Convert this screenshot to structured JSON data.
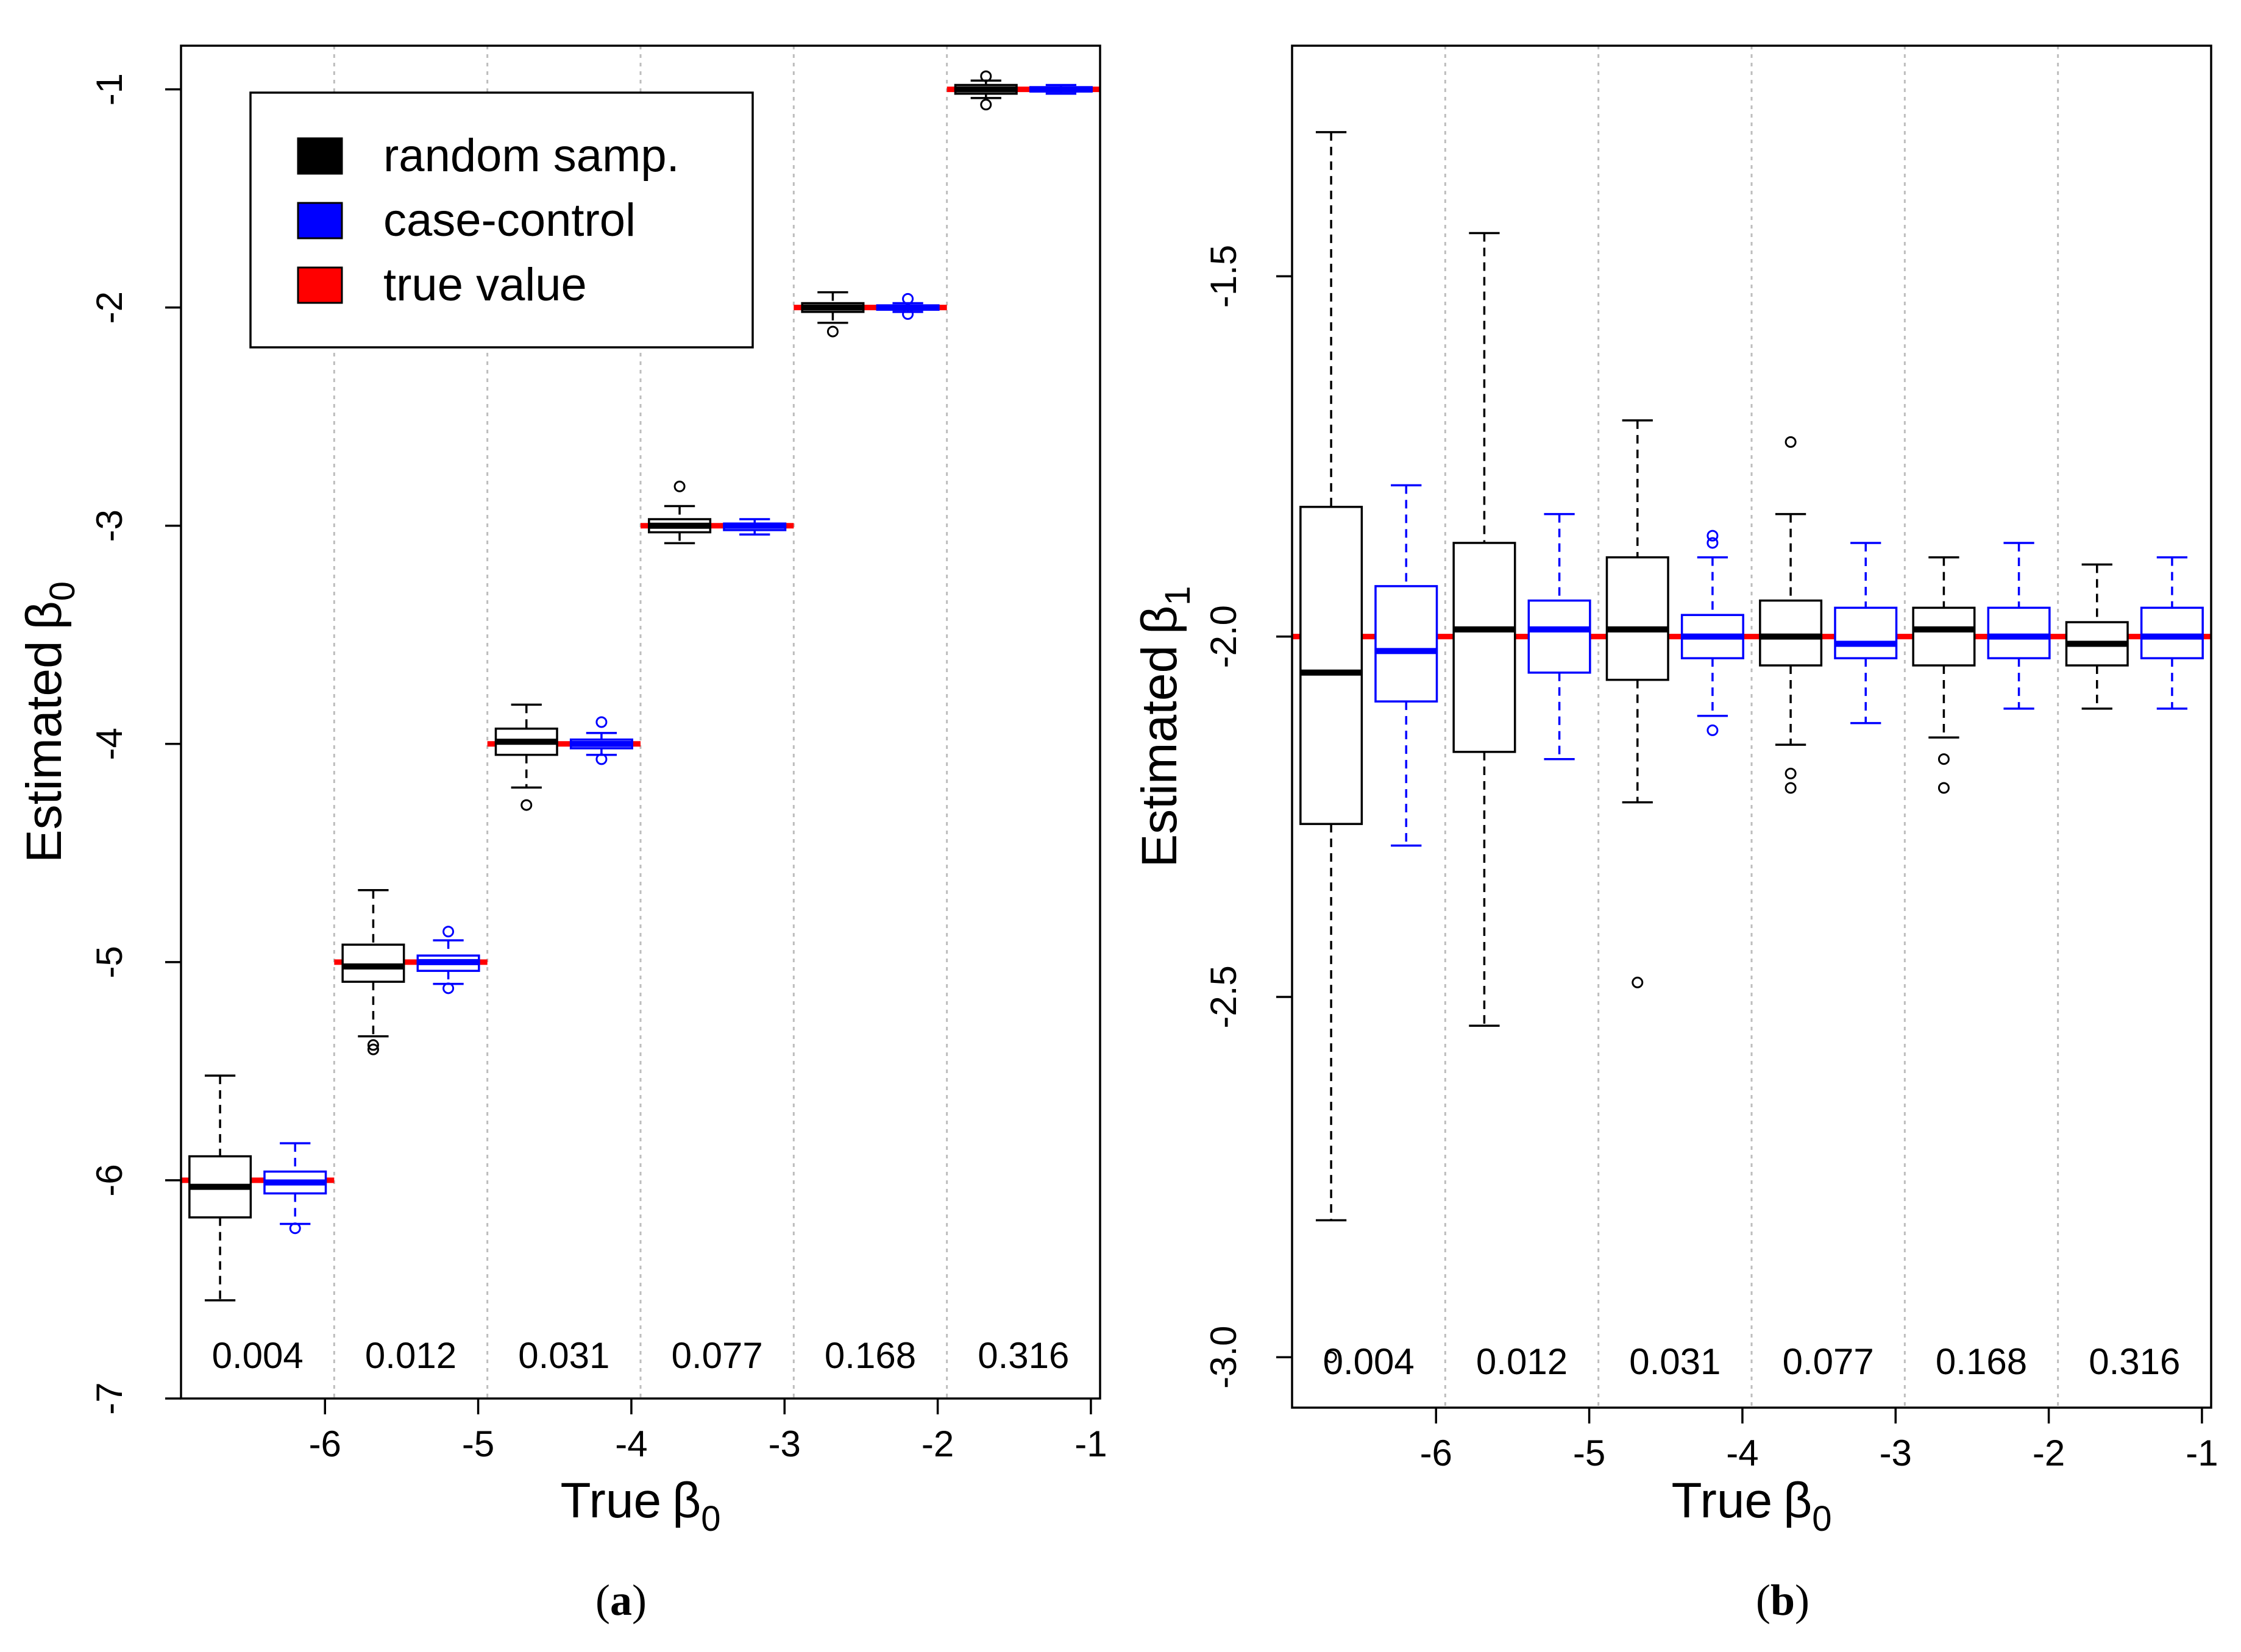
{
  "colors": {
    "random": "#000000",
    "casecontrol": "#0000ff",
    "truth": "#ff0000",
    "grid": "#bdbdbd"
  },
  "legend": {
    "placement": "top-left",
    "entries": [
      {
        "key": "random",
        "label": "random samp."
      },
      {
        "key": "casecontrol",
        "label": "case-control"
      },
      {
        "key": "truth",
        "label": "true value"
      }
    ]
  },
  "chart_data": [
    {
      "type": "box",
      "panel_label": "a",
      "xlabel": "True",
      "xlabel_symbol": "β",
      "xlabel_sub": "0",
      "ylabel": "Estimated",
      "ylabel_symbol": "β",
      "ylabel_sub": "0",
      "ylim": [
        -7,
        -0.8
      ],
      "yticks": [
        "-7",
        "-6",
        "-5",
        "-4",
        "-3",
        "-2",
        "-1"
      ],
      "ytick_values": [
        -7,
        -6,
        -5,
        -4,
        -3,
        -2,
        -1
      ],
      "categories": [
        "-6",
        "-5",
        "-4",
        "-3",
        "-2",
        "-1"
      ],
      "proportions": [
        "0.004",
        "0.012",
        "0.031",
        "0.077",
        "0.168",
        "0.316"
      ],
      "true_values": [
        -6,
        -5,
        -4,
        -3,
        -2,
        -1
      ],
      "grid": "vertical dotted separators",
      "series": [
        {
          "key": "random",
          "name": "random samp.",
          "boxes": [
            {
              "lw": -6.55,
              "q1": -6.17,
              "med": -6.03,
              "q3": -5.89,
              "uw": -5.52,
              "out": []
            },
            {
              "lw": -5.34,
              "q1": -5.09,
              "med": -5.02,
              "q3": -4.92,
              "uw": -4.67,
              "out": [
                -5.38,
                -5.4
              ]
            },
            {
              "lw": -4.2,
              "q1": -4.05,
              "med": -3.99,
              "q3": -3.93,
              "uw": -3.82,
              "out": [
                -4.28
              ]
            },
            {
              "lw": -3.08,
              "q1": -3.03,
              "med": -3.0,
              "q3": -2.97,
              "uw": -2.91,
              "out": [
                -2.82
              ]
            },
            {
              "lw": -2.07,
              "q1": -2.02,
              "med": -2.0,
              "q3": -1.98,
              "uw": -1.93,
              "out": [
                -2.11
              ]
            },
            {
              "lw": -1.04,
              "q1": -1.02,
              "med": -1.0,
              "q3": -0.98,
              "uw": -0.96,
              "out": [
                -0.94,
                -1.07
              ]
            }
          ]
        },
        {
          "key": "casecontrol",
          "name": "case-control",
          "boxes": [
            {
              "lw": -6.2,
              "q1": -6.06,
              "med": -6.01,
              "q3": -5.96,
              "uw": -5.83,
              "out": [
                -6.22
              ]
            },
            {
              "lw": -5.1,
              "q1": -5.04,
              "med": -5.0,
              "q3": -4.97,
              "uw": -4.9,
              "out": [
                -4.86,
                -5.12
              ]
            },
            {
              "lw": -4.05,
              "q1": -4.02,
              "med": -4.0,
              "q3": -3.98,
              "uw": -3.95,
              "out": [
                -3.9,
                -4.07
              ]
            },
            {
              "lw": -3.04,
              "q1": -3.02,
              "med": -3.0,
              "q3": -2.99,
              "uw": -2.97,
              "out": []
            },
            {
              "lw": -2.02,
              "q1": -2.01,
              "med": -2.0,
              "q3": -1.99,
              "uw": -1.98,
              "out": [
                -1.96,
                -2.03
              ]
            },
            {
              "lw": -1.02,
              "q1": -1.01,
              "med": -1.0,
              "q3": -0.99,
              "uw": -0.98,
              "out": []
            }
          ]
        }
      ]
    },
    {
      "type": "box",
      "panel_label": "b",
      "xlabel": "True",
      "xlabel_symbol": "β",
      "xlabel_sub": "0",
      "ylabel": "Estimated",
      "ylabel_symbol": "β",
      "ylabel_sub": "1",
      "ylim": [
        -3.07,
        -1.18
      ],
      "yticks": [
        "-3.0",
        "-2.5",
        "-2.0",
        "-1.5"
      ],
      "ytick_values": [
        -3.0,
        -2.5,
        -2.0,
        -1.5
      ],
      "categories": [
        "-6",
        "-5",
        "-4",
        "-3",
        "-2",
        "-1"
      ],
      "proportions": [
        "0.004",
        "0.012",
        "0.031",
        "0.077",
        "0.168",
        "0.316"
      ],
      "true_value": -2.0,
      "grid": "vertical dotted separators",
      "series": [
        {
          "key": "random",
          "name": "random samp.",
          "boxes": [
            {
              "lw": -2.81,
              "q1": -2.26,
              "med": -2.05,
              "q3": -1.82,
              "uw": -1.3,
              "out": [
                -3.0
              ]
            },
            {
              "lw": -2.54,
              "q1": -2.16,
              "med": -1.99,
              "q3": -1.87,
              "uw": -1.44,
              "out": []
            },
            {
              "lw": -2.23,
              "q1": -2.06,
              "med": -1.99,
              "q3": -1.89,
              "uw": -1.7,
              "out": [
                -2.48
              ]
            },
            {
              "lw": -2.15,
              "q1": -2.04,
              "med": -2.0,
              "q3": -1.95,
              "uw": -1.83,
              "out": [
                -1.73,
                -2.19,
                -2.21
              ]
            },
            {
              "lw": -2.14,
              "q1": -2.04,
              "med": -1.99,
              "q3": -1.96,
              "uw": -1.89,
              "out": [
                -2.17,
                -2.21
              ]
            },
            {
              "lw": -2.1,
              "q1": -2.04,
              "med": -2.01,
              "q3": -1.98,
              "uw": -1.9,
              "out": []
            }
          ]
        },
        {
          "key": "casecontrol",
          "name": "case-control",
          "boxes": [
            {
              "lw": -2.29,
              "q1": -2.09,
              "med": -2.02,
              "q3": -1.93,
              "uw": -1.79,
              "out": []
            },
            {
              "lw": -2.17,
              "q1": -2.05,
              "med": -1.99,
              "q3": -1.95,
              "uw": -1.83,
              "out": []
            },
            {
              "lw": -2.11,
              "q1": -2.03,
              "med": -2.0,
              "q3": -1.97,
              "uw": -1.89,
              "out": [
                -1.86,
                -1.87,
                -2.13
              ]
            },
            {
              "lw": -2.12,
              "q1": -2.03,
              "med": -2.01,
              "q3": -1.96,
              "uw": -1.87,
              "out": []
            },
            {
              "lw": -2.1,
              "q1": -2.03,
              "med": -2.0,
              "q3": -1.96,
              "uw": -1.87,
              "out": []
            },
            {
              "lw": -2.1,
              "q1": -2.03,
              "med": -2.0,
              "q3": -1.96,
              "uw": -1.89,
              "out": []
            }
          ]
        }
      ]
    }
  ]
}
